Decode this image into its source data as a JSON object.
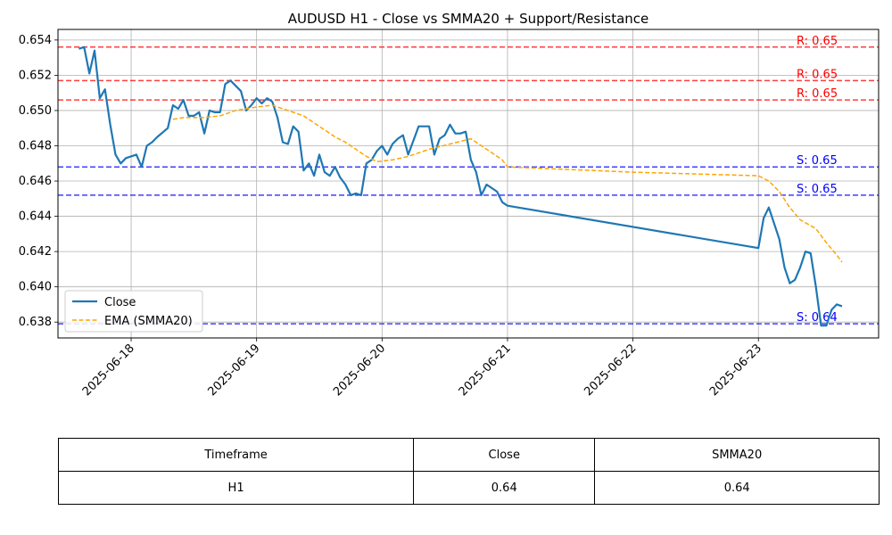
{
  "chart_data": {
    "type": "line",
    "title": "AUDUSD H1 - Close vs SMMA20 + Support/Resistance",
    "xlabel": "",
    "ylabel": "",
    "x_ticks": [
      "2025-06-18",
      "2025-06-19",
      "2025-06-20",
      "2025-06-21",
      "2025-06-22",
      "2025-06-23"
    ],
    "y_ticks": [
      "0.638",
      "0.640",
      "0.642",
      "0.644",
      "0.646",
      "0.648",
      "0.650",
      "0.652",
      "0.654"
    ],
    "xlim": [
      "2025-06-17 10:00",
      "2025-06-23 23:00"
    ],
    "ylim": [
      0.6371,
      0.6546
    ],
    "grid": true,
    "legend_position": "lower left",
    "series": [
      {
        "name": "Close",
        "color": "#1f77b4",
        "style": "solid",
        "points": [
          [
            "2025-06-17 14:00",
            0.6535
          ],
          [
            "2025-06-17 15:00",
            0.6536
          ],
          [
            "2025-06-17 16:00",
            0.6521
          ],
          [
            "2025-06-17 17:00",
            0.6534
          ],
          [
            "2025-06-17 18:00",
            0.6507
          ],
          [
            "2025-06-17 19:00",
            0.6512
          ],
          [
            "2025-06-17 20:00",
            0.6492
          ],
          [
            "2025-06-17 21:00",
            0.6475
          ],
          [
            "2025-06-17 22:00",
            0.647
          ],
          [
            "2025-06-17 23:00",
            0.6473
          ],
          [
            "2025-06-18 01:00",
            0.6475
          ],
          [
            "2025-06-18 02:00",
            0.6468
          ],
          [
            "2025-06-18 03:00",
            0.648
          ],
          [
            "2025-06-18 04:00",
            0.6482
          ],
          [
            "2025-06-18 05:00",
            0.6485
          ],
          [
            "2025-06-18 07:00",
            0.649
          ],
          [
            "2025-06-18 08:00",
            0.6503
          ],
          [
            "2025-06-18 09:00",
            0.6501
          ],
          [
            "2025-06-18 10:00",
            0.6506
          ],
          [
            "2025-06-18 11:00",
            0.6497
          ],
          [
            "2025-06-18 12:00",
            0.6497
          ],
          [
            "2025-06-18 13:00",
            0.6499
          ],
          [
            "2025-06-18 14:00",
            0.6487
          ],
          [
            "2025-06-18 15:00",
            0.65
          ],
          [
            "2025-06-18 16:00",
            0.6499
          ],
          [
            "2025-06-18 17:00",
            0.6499
          ],
          [
            "2025-06-18 18:00",
            0.6515
          ],
          [
            "2025-06-18 19:00",
            0.6517
          ],
          [
            "2025-06-18 21:00",
            0.6511
          ],
          [
            "2025-06-18 22:00",
            0.65
          ],
          [
            "2025-06-18 23:00",
            0.6503
          ],
          [
            "2025-06-19 00:00",
            0.6507
          ],
          [
            "2025-06-19 01:00",
            0.6504
          ],
          [
            "2025-06-19 02:00",
            0.6507
          ],
          [
            "2025-06-19 03:00",
            0.6505
          ],
          [
            "2025-06-19 04:00",
            0.6496
          ],
          [
            "2025-06-19 05:00",
            0.6482
          ],
          [
            "2025-06-19 06:00",
            0.6481
          ],
          [
            "2025-06-19 07:00",
            0.6491
          ],
          [
            "2025-06-19 08:00",
            0.6488
          ],
          [
            "2025-06-19 09:00",
            0.6466
          ],
          [
            "2025-06-19 10:00",
            0.647
          ],
          [
            "2025-06-19 11:00",
            0.6463
          ],
          [
            "2025-06-19 12:00",
            0.6475
          ],
          [
            "2025-06-19 13:00",
            0.6465
          ],
          [
            "2025-06-19 14:00",
            0.6463
          ],
          [
            "2025-06-19 15:00",
            0.6468
          ],
          [
            "2025-06-19 16:00",
            0.6462
          ],
          [
            "2025-06-19 17:00",
            0.6458
          ],
          [
            "2025-06-19 18:00",
            0.6452
          ],
          [
            "2025-06-19 19:00",
            0.6453
          ],
          [
            "2025-06-19 20:00",
            0.6452
          ],
          [
            "2025-06-19 21:00",
            0.647
          ],
          [
            "2025-06-19 22:00",
            0.6472
          ],
          [
            "2025-06-19 23:00",
            0.6477
          ],
          [
            "2025-06-20 00:00",
            0.648
          ],
          [
            "2025-06-20 01:00",
            0.6475
          ],
          [
            "2025-06-20 02:00",
            0.6481
          ],
          [
            "2025-06-20 03:00",
            0.6484
          ],
          [
            "2025-06-20 04:00",
            0.6486
          ],
          [
            "2025-06-20 05:00",
            0.6475
          ],
          [
            "2025-06-20 06:00",
            0.6483
          ],
          [
            "2025-06-20 07:00",
            0.6491
          ],
          [
            "2025-06-20 09:00",
            0.6491
          ],
          [
            "2025-06-20 10:00",
            0.6475
          ],
          [
            "2025-06-20 11:00",
            0.6484
          ],
          [
            "2025-06-20 12:00",
            0.6486
          ],
          [
            "2025-06-20 13:00",
            0.6492
          ],
          [
            "2025-06-20 14:00",
            0.6487
          ],
          [
            "2025-06-20 15:00",
            0.6487
          ],
          [
            "2025-06-20 16:00",
            0.6488
          ],
          [
            "2025-06-20 17:00",
            0.6472
          ],
          [
            "2025-06-20 18:00",
            0.6465
          ],
          [
            "2025-06-20 19:00",
            0.6452
          ],
          [
            "2025-06-20 20:00",
            0.6458
          ],
          [
            "2025-06-20 22:00",
            0.6454
          ],
          [
            "2025-06-20 23:00",
            0.6448
          ],
          [
            "2025-06-21 00:00",
            0.6446
          ],
          [
            "2025-06-23 00:00",
            0.6422
          ],
          [
            "2025-06-23 01:00",
            0.6439
          ],
          [
            "2025-06-23 02:00",
            0.6445
          ],
          [
            "2025-06-23 04:00",
            0.6427
          ],
          [
            "2025-06-23 05:00",
            0.6411
          ],
          [
            "2025-06-23 06:00",
            0.6402
          ],
          [
            "2025-06-23 07:00",
            0.6404
          ],
          [
            "2025-06-23 08:00",
            0.6411
          ],
          [
            "2025-06-23 09:00",
            0.642
          ],
          [
            "2025-06-23 10:00",
            0.6419
          ],
          [
            "2025-06-23 11:00",
            0.64
          ],
          [
            "2025-06-23 12:00",
            0.6378
          ],
          [
            "2025-06-23 13:00",
            0.6378
          ],
          [
            "2025-06-23 14:00",
            0.6387
          ],
          [
            "2025-06-23 15:00",
            0.639
          ],
          [
            "2025-06-23 16:00",
            0.6389
          ]
        ]
      },
      {
        "name": "EMA (SMMA20)",
        "color": "#ffa500",
        "style": "dashed",
        "points": [
          [
            "2025-06-18 08:00",
            0.6495
          ],
          [
            "2025-06-18 10:00",
            0.6496
          ],
          [
            "2025-06-18 14:00",
            0.6496
          ],
          [
            "2025-06-18 17:00",
            0.6497
          ],
          [
            "2025-06-18 20:00",
            0.65
          ],
          [
            "2025-06-19 00:00",
            0.6502
          ],
          [
            "2025-06-19 03:00",
            0.6503
          ],
          [
            "2025-06-19 05:00",
            0.6501
          ],
          [
            "2025-06-19 07:00",
            0.6499
          ],
          [
            "2025-06-19 09:00",
            0.6497
          ],
          [
            "2025-06-19 11:00",
            0.6493
          ],
          [
            "2025-06-19 13:00",
            0.6489
          ],
          [
            "2025-06-19 15:00",
            0.6485
          ],
          [
            "2025-06-19 17:00",
            0.6482
          ],
          [
            "2025-06-19 19:00",
            0.6478
          ],
          [
            "2025-06-19 21:00",
            0.6474
          ],
          [
            "2025-06-19 23:00",
            0.6471
          ],
          [
            "2025-06-20 02:00",
            0.6472
          ],
          [
            "2025-06-20 05:00",
            0.6474
          ],
          [
            "2025-06-20 09:00",
            0.6478
          ],
          [
            "2025-06-20 13:00",
            0.6481
          ],
          [
            "2025-06-20 17:00",
            0.6484
          ],
          [
            "2025-06-20 20:00",
            0.6478
          ],
          [
            "2025-06-20 23:00",
            0.6472
          ],
          [
            "2025-06-21 00:00",
            0.6468
          ],
          [
            "2025-06-22 00:00",
            0.6465
          ],
          [
            "2025-06-23 00:00",
            0.6463
          ],
          [
            "2025-06-23 02:00",
            0.646
          ],
          [
            "2025-06-23 04:00",
            0.6454
          ],
          [
            "2025-06-23 06:00",
            0.6445
          ],
          [
            "2025-06-23 08:00",
            0.6438
          ],
          [
            "2025-06-23 11:00",
            0.6433
          ],
          [
            "2025-06-23 13:00",
            0.6425
          ],
          [
            "2025-06-23 15:00",
            0.6418
          ],
          [
            "2025-06-23 16:00",
            0.6414
          ]
        ]
      }
    ],
    "levels": [
      {
        "kind": "resistance",
        "value": 0.6536,
        "label": "R: 0.65",
        "color": "#ff0000"
      },
      {
        "kind": "resistance",
        "value": 0.6517,
        "label": "R: 0.65",
        "color": "#ff0000"
      },
      {
        "kind": "resistance",
        "value": 0.6506,
        "label": "R: 0.65",
        "color": "#ff0000"
      },
      {
        "kind": "support",
        "value": 0.6468,
        "label": "S: 0.65",
        "color": "#0000ff"
      },
      {
        "kind": "support",
        "value": 0.6452,
        "label": "S: 0.65",
        "color": "#0000ff"
      },
      {
        "kind": "support",
        "value": 0.6379,
        "label": "S: 0.64",
        "color": "#0000ff"
      }
    ]
  },
  "table": {
    "headers": [
      "Timeframe",
      "Close",
      "SMMA20"
    ],
    "rows": [
      [
        "H1",
        "0.64",
        "0.64"
      ]
    ]
  }
}
